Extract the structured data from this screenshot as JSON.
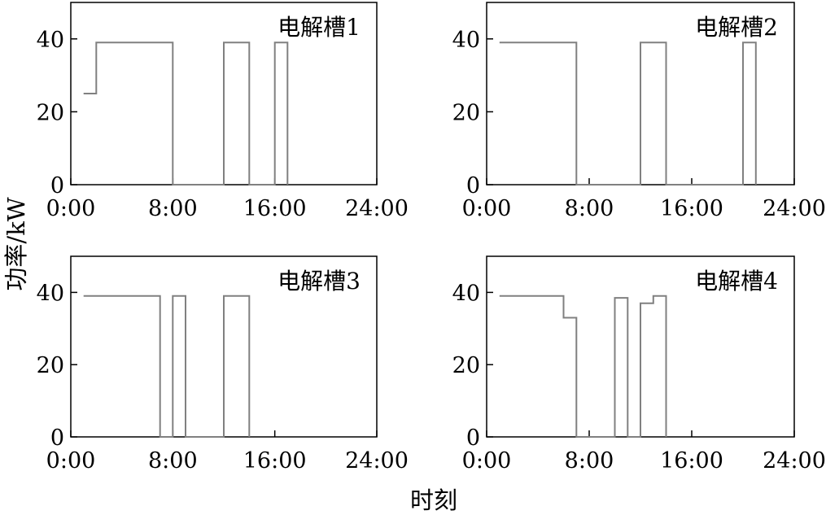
{
  "chart_data": {
    "type": "line",
    "xlabel": "时刻",
    "ylabel": "功率/kW",
    "xlim": [
      0,
      24
    ],
    "ylim": [
      0,
      50
    ],
    "x_ticks": [
      {
        "value": 0,
        "label": "0:00"
      },
      {
        "value": 8,
        "label": "8:00"
      },
      {
        "value": 16,
        "label": "16:00"
      },
      {
        "value": 24,
        "label": "24:00"
      }
    ],
    "y_ticks": [
      {
        "value": 0,
        "label": "0"
      },
      {
        "value": 20,
        "label": "20"
      },
      {
        "value": 40,
        "label": "40"
      }
    ],
    "grid": false,
    "line_color": "#808080",
    "panels": [
      {
        "title": "电解槽1",
        "points": [
          [
            1,
            25
          ],
          [
            2,
            25
          ],
          [
            2,
            39
          ],
          [
            8,
            39
          ],
          [
            8,
            0
          ],
          [
            12,
            0
          ],
          [
            12,
            39
          ],
          [
            14,
            39
          ],
          [
            14,
            0
          ],
          [
            16,
            0
          ],
          [
            16,
            39
          ],
          [
            17,
            39
          ],
          [
            17,
            0
          ]
        ]
      },
      {
        "title": "电解槽2",
        "points": [
          [
            1,
            39
          ],
          [
            7,
            39
          ],
          [
            7,
            0
          ],
          [
            12,
            0
          ],
          [
            12,
            39
          ],
          [
            14,
            39
          ],
          [
            14,
            0
          ],
          [
            20,
            0
          ],
          [
            20,
            39
          ],
          [
            21,
            39
          ],
          [
            21,
            0
          ]
        ]
      },
      {
        "title": "电解槽3",
        "points": [
          [
            1,
            39
          ],
          [
            7,
            39
          ],
          [
            7,
            0
          ],
          [
            8,
            0
          ],
          [
            8,
            39
          ],
          [
            9,
            39
          ],
          [
            9,
            0
          ],
          [
            12,
            0
          ],
          [
            12,
            39
          ],
          [
            14,
            39
          ],
          [
            14,
            0
          ]
        ]
      },
      {
        "title": "电解槽4",
        "points": [
          [
            1,
            39
          ],
          [
            6,
            39
          ],
          [
            6,
            33
          ],
          [
            7,
            33
          ],
          [
            7,
            0
          ],
          [
            10,
            0
          ],
          [
            10,
            38.5
          ],
          [
            11,
            38.5
          ],
          [
            11,
            0
          ],
          [
            12,
            0
          ],
          [
            12,
            37
          ],
          [
            13,
            37
          ],
          [
            13,
            39
          ],
          [
            14,
            39
          ],
          [
            14,
            0
          ]
        ]
      }
    ]
  }
}
